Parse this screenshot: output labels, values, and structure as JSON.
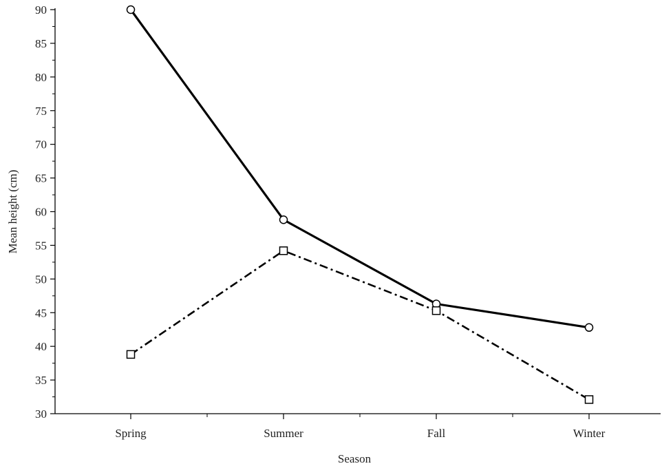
{
  "chart_data": {
    "type": "line",
    "title": "",
    "xlabel": "Season",
    "ylabel": "Mean height (cm)",
    "categories": [
      "Spring",
      "Summer",
      "Fall",
      "Winter"
    ],
    "ylim": [
      30,
      90
    ],
    "yticks": [
      30,
      35,
      40,
      45,
      50,
      55,
      60,
      65,
      70,
      75,
      80,
      85,
      90
    ],
    "grid": false,
    "legend": "none",
    "series": [
      {
        "values": [
          90.0,
          58.8,
          46.3,
          42.8
        ],
        "line_style": "solid",
        "marker": "circle",
        "color": "#000000"
      },
      {
        "values": [
          38.8,
          54.2,
          45.3,
          32.1
        ],
        "line_style": "dash-dot",
        "marker": "square",
        "color": "#000000"
      }
    ]
  }
}
